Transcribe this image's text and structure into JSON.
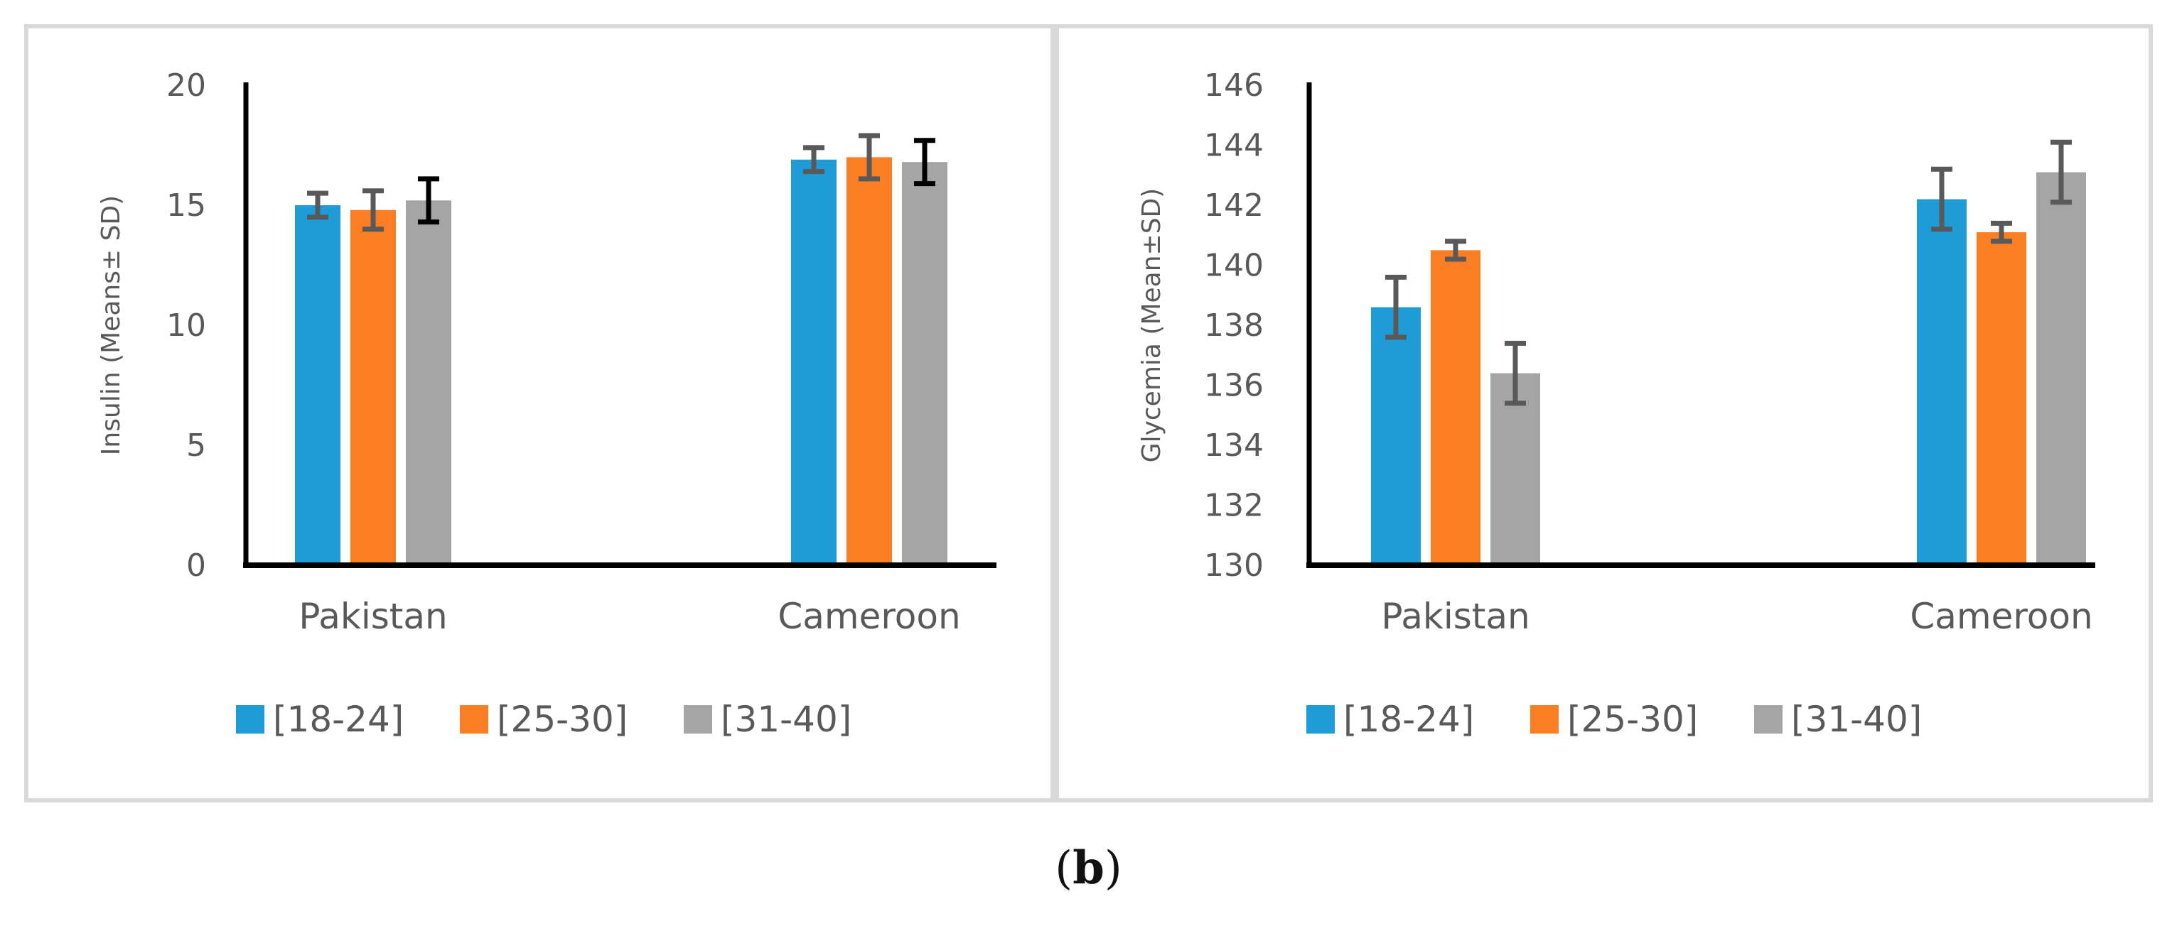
{
  "figure_label": {
    "open": "(",
    "letter": "b",
    "close": ")"
  },
  "colors": {
    "c1": "#1f9bd7",
    "c2": "#fb7d24",
    "c3": "#a5a5a5",
    "axis": "#000000",
    "tick": "#595959",
    "err": "#595959",
    "errAlt": "#000000"
  },
  "chart_data": [
    {
      "type": "bar",
      "title": "",
      "ylabel": "Insulin (Means± SD)",
      "xlabel": "",
      "ylim": [
        0,
        20
      ],
      "yticks": [
        0,
        5,
        10,
        15,
        20
      ],
      "categories": [
        "Pakistan",
        "Cameroon"
      ],
      "legend_position": "bottom",
      "series": [
        {
          "name": "[18-24]",
          "values": [
            15.0,
            16.9
          ],
          "errors": [
            0.5,
            0.5
          ]
        },
        {
          "name": "[25-30]",
          "values": [
            14.8,
            17.0
          ],
          "errors": [
            0.8,
            0.9
          ]
        },
        {
          "name": "[31-40]",
          "values": [
            15.2,
            16.8
          ],
          "errors": [
            0.9,
            0.9
          ]
        }
      ]
    },
    {
      "type": "bar",
      "title": "",
      "ylabel": "Glycemia (Mean±SD)",
      "xlabel": "",
      "ylim": [
        130,
        146
      ],
      "yticks": [
        130,
        132,
        134,
        136,
        138,
        140,
        142,
        144,
        146
      ],
      "categories": [
        "Pakistan",
        "Cameroon"
      ],
      "legend_position": "bottom",
      "series": [
        {
          "name": "[18-24]",
          "values": [
            138.6,
            142.2
          ],
          "errors": [
            1.0,
            1.0
          ]
        },
        {
          "name": "[25-30]",
          "values": [
            140.5,
            141.1
          ],
          "errors": [
            0.3,
            0.3
          ]
        },
        {
          "name": "[31-40]",
          "values": [
            136.4,
            143.1
          ],
          "errors": [
            1.0,
            1.0
          ]
        }
      ]
    }
  ]
}
